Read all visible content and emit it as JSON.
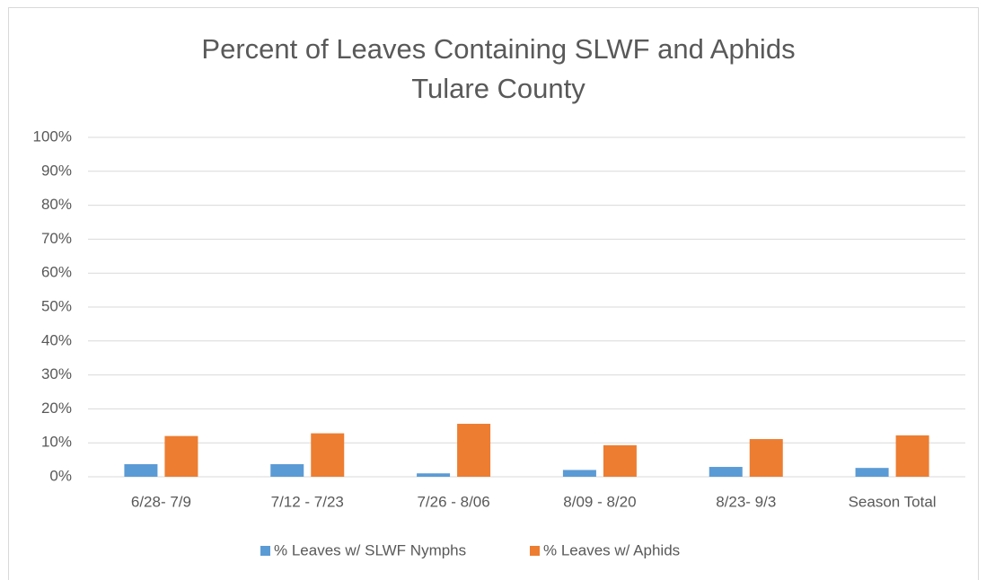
{
  "chart_data": {
    "type": "bar",
    "title": "Percent of Leaves Containing SLWF and Aphids",
    "subtitle": "Tulare County",
    "categories": [
      "6/28- 7/9",
      "7/12 - 7/23",
      "7/26 - 8/06",
      "8/09 - 8/20",
      "8/23- 9/3",
      "Season Total"
    ],
    "series": [
      {
        "name": "% Leaves w/ SLWF Nymphs",
        "color": "#5b9bd5",
        "values": [
          3.7,
          3.7,
          1.0,
          2.0,
          2.9,
          2.6
        ]
      },
      {
        "name": "% Leaves w/ Aphids",
        "color": "#ed7d31",
        "values": [
          12.0,
          12.8,
          15.6,
          9.3,
          11.1,
          12.2
        ]
      }
    ],
    "ylim": [
      0,
      100
    ],
    "yticks": [
      {
        "value": 0,
        "label": "0%"
      },
      {
        "value": 10,
        "label": "10%"
      },
      {
        "value": 20,
        "label": "20%"
      },
      {
        "value": 30,
        "label": "30%"
      },
      {
        "value": 40,
        "label": "40%"
      },
      {
        "value": 50,
        "label": "50%"
      },
      {
        "value": 60,
        "label": "60%"
      },
      {
        "value": 70,
        "label": "70%"
      },
      {
        "value": 80,
        "label": "80%"
      },
      {
        "value": 90,
        "label": "90%"
      },
      {
        "value": 100,
        "label": "100%"
      }
    ],
    "grid": true,
    "legend": "bottom"
  }
}
